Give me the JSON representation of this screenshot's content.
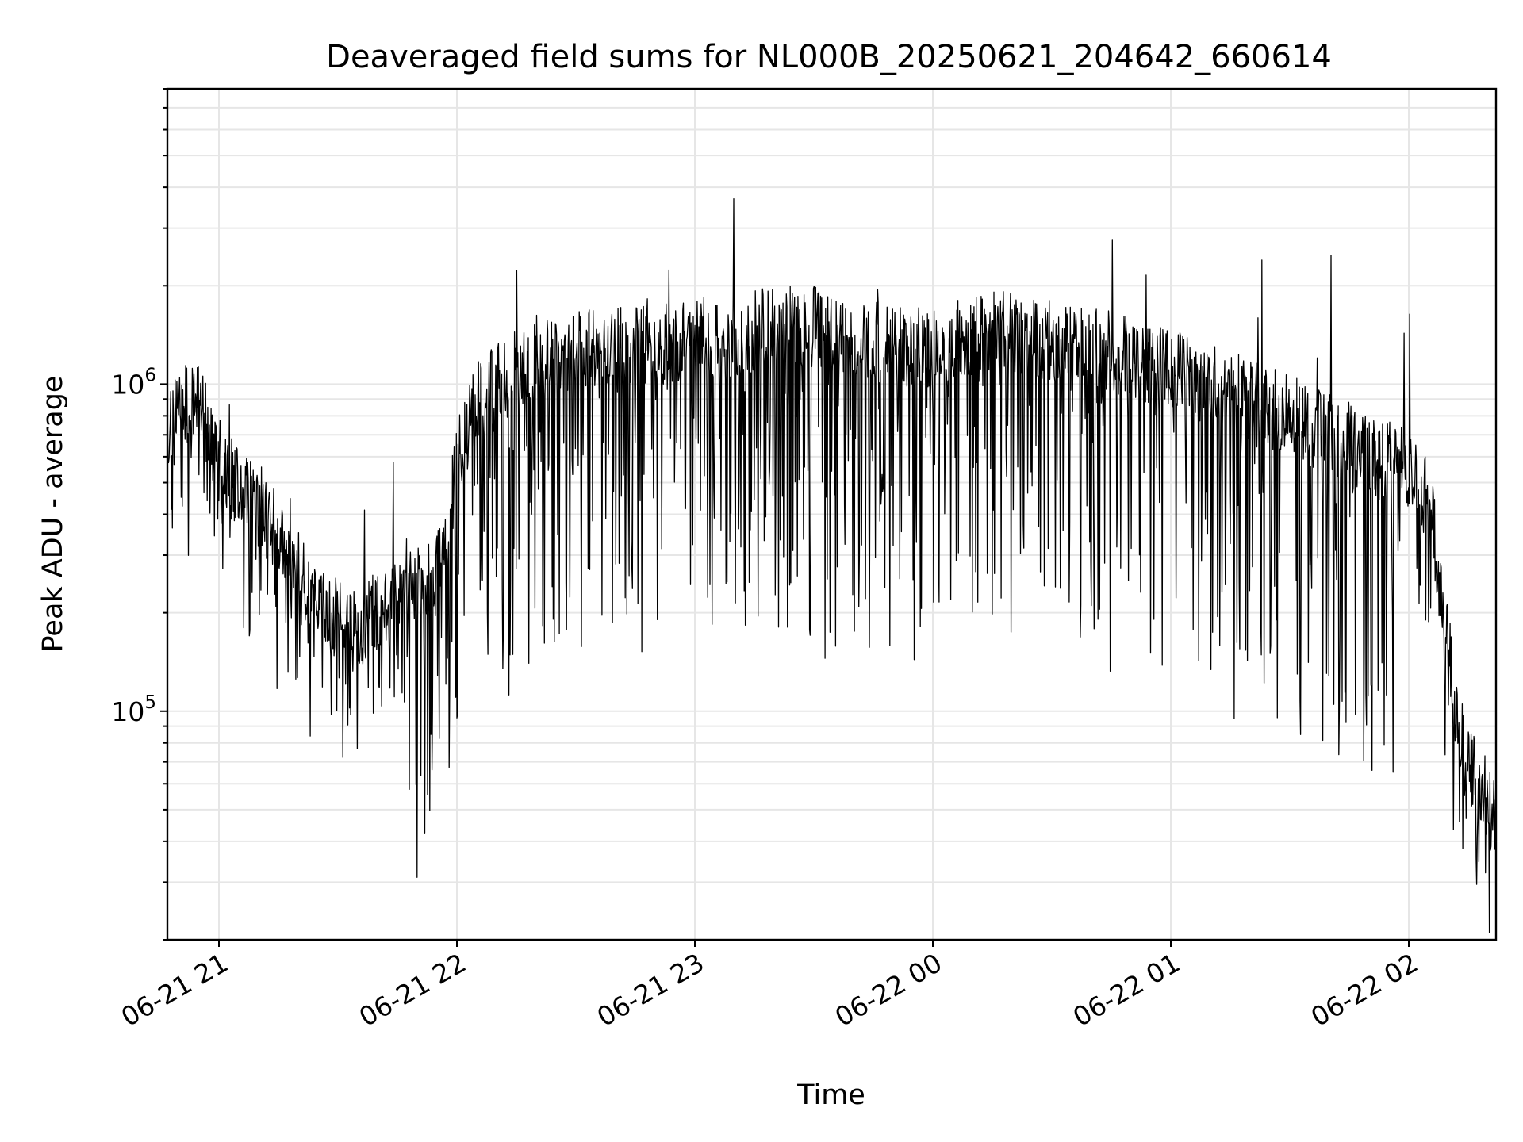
{
  "chart_data": {
    "type": "line",
    "title": "Deaveraged field sums for NL000B_20250621_204642_660614",
    "xlabel": "Time",
    "ylabel": "Peak ADU - average",
    "y_scale": "log",
    "grid": true,
    "x_range": [
      "06-21 20:47",
      "06-22 02:22"
    ],
    "ylim": [
      20000,
      8000000
    ],
    "x_ticks": [
      "06-21 21",
      "06-21 22",
      "06-21 23",
      "06-22 00",
      "06-22 01",
      "06-22 02"
    ],
    "y_ticks": [
      {
        "base": "10",
        "exp": "5",
        "value": 100000
      },
      {
        "base": "10",
        "exp": "6",
        "value": 1000000
      }
    ],
    "series": [
      {
        "color": "#000000",
        "x": [
          "06-21 20:47",
          "06-21 20:50",
          "06-21 20:53",
          "06-21 20:55",
          "06-21 20:57",
          "06-21 21:00",
          "06-21 21:03",
          "06-21 21:06",
          "06-21 21:09",
          "06-21 21:12",
          "06-21 21:15",
          "06-21 21:18",
          "06-21 21:21",
          "06-21 21:23",
          "06-21 21:25",
          "06-21 21:28",
          "06-21 21:31",
          "06-21 21:34",
          "06-21 21:37",
          "06-21 21:40",
          "06-21 21:42",
          "06-21 21:45",
          "06-21 21:48",
          "06-21 21:51",
          "06-21 21:54",
          "06-21 21:57",
          "06-21 22:00",
          "06-21 22:05",
          "06-21 22:10",
          "06-21 22:15",
          "06-21 22:20",
          "06-21 22:25",
          "06-21 22:30",
          "06-21 22:35",
          "06-21 22:40",
          "06-21 22:45",
          "06-21 22:50",
          "06-21 22:55",
          "06-21 23:00",
          "06-21 23:05",
          "06-21 23:10",
          "06-21 23:15",
          "06-21 23:20",
          "06-21 23:25",
          "06-21 23:30",
          "06-21 23:35",
          "06-21 23:40",
          "06-21 23:45",
          "06-21 23:50",
          "06-21 23:55",
          "06-22 00:00",
          "06-22 00:05",
          "06-22 00:10",
          "06-22 00:15",
          "06-22 00:20",
          "06-22 00:25",
          "06-22 00:30",
          "06-22 00:35",
          "06-22 00:40",
          "06-22 00:45",
          "06-22 00:50",
          "06-22 00:55",
          "06-22 01:00",
          "06-22 01:05",
          "06-22 01:10",
          "06-22 01:15",
          "06-22 01:20",
          "06-22 01:25",
          "06-22 01:30",
          "06-22 01:35",
          "06-22 01:40",
          "06-22 01:45",
          "06-22 01:50",
          "06-22 01:55",
          "06-22 02:00",
          "06-22 02:03",
          "06-22 02:06",
          "06-22 02:09",
          "06-22 02:12",
          "06-22 02:15",
          "06-22 02:18",
          "06-22 02:20",
          "06-22 02:22"
        ],
        "y": [
          750000,
          900000,
          820000,
          1050000,
          700000,
          600000,
          520000,
          480000,
          450000,
          400000,
          350000,
          300000,
          260000,
          240000,
          220000,
          200000,
          190000,
          180000,
          190000,
          200000,
          210000,
          220000,
          230000,
          240000,
          250000,
          300000,
          600000,
          900000,
          1000000,
          1100000,
          1150000,
          1200000,
          1250000,
          1300000,
          1300000,
          1300000,
          1300000,
          1350000,
          1400000,
          1400000,
          1400000,
          1450000,
          1500000,
          1500000,
          1500000,
          1450000,
          1400000,
          1350000,
          1300000,
          1300000,
          1300000,
          1350000,
          1400000,
          1450000,
          1450000,
          1400000,
          1350000,
          1300000,
          1300000,
          1250000,
          1200000,
          1150000,
          1100000,
          1050000,
          1000000,
          950000,
          900000,
          850000,
          800000,
          750000,
          700000,
          650000,
          600000,
          580000,
          560000,
          500000,
          380000,
          200000,
          95000,
          70000,
          60000,
          55000,
          45000
        ]
      }
    ]
  }
}
